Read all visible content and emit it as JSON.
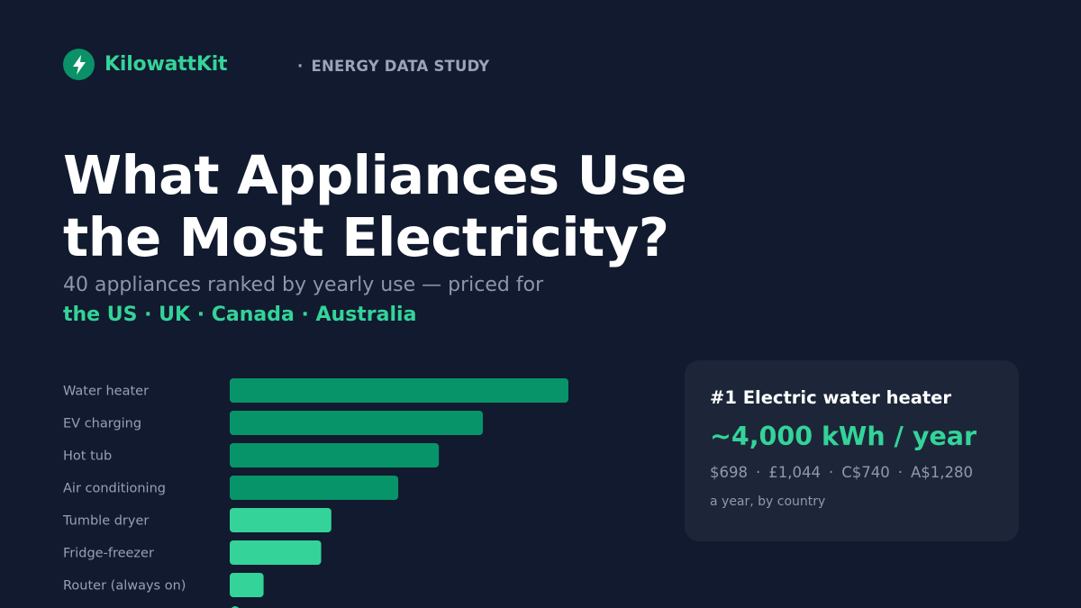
{
  "brand": {
    "name": "KilowattKit",
    "icon": "lightning-bolt-icon",
    "accent": "#34d399"
  },
  "kicker": {
    "dot": "·",
    "text": "ENERGY DATA STUDY"
  },
  "headline": {
    "line1": "What Appliances Use",
    "line2": "the Most Electricity?"
  },
  "subtitle": "40 appliances ranked by yearly use — priced for",
  "countries": "the US · UK · Canada · Australia",
  "chart_data": {
    "type": "bar",
    "orientation": "horizontal",
    "title": "",
    "xlabel": "",
    "ylabel": "",
    "grid": false,
    "categories": [
      "Water heater",
      "EV charging",
      "Hot tub",
      "Air conditioning",
      "Tumble dryer",
      "Fridge-freezer",
      "Router (always on)"
    ],
    "series": [
      {
        "values": [
          4000,
          2990,
          2470,
          1990,
          1200,
          1080,
          400
        ]
      }
    ],
    "xlim": [
      0,
      4000
    ],
    "colors": {
      "top_group": "#079468",
      "rest": "#34d399"
    },
    "highlight_top_n": 4
  },
  "card": {
    "title": "#1 Electric water heater",
    "value": "~4,000 kWh / year",
    "prices": [
      "$698",
      "£1,044",
      "C$740",
      "A$1,280"
    ],
    "separator": "·",
    "note": "a year, by country"
  },
  "colors": {
    "background": "#111a2e",
    "card": "#1c2638",
    "accent": "#34d399"
  }
}
